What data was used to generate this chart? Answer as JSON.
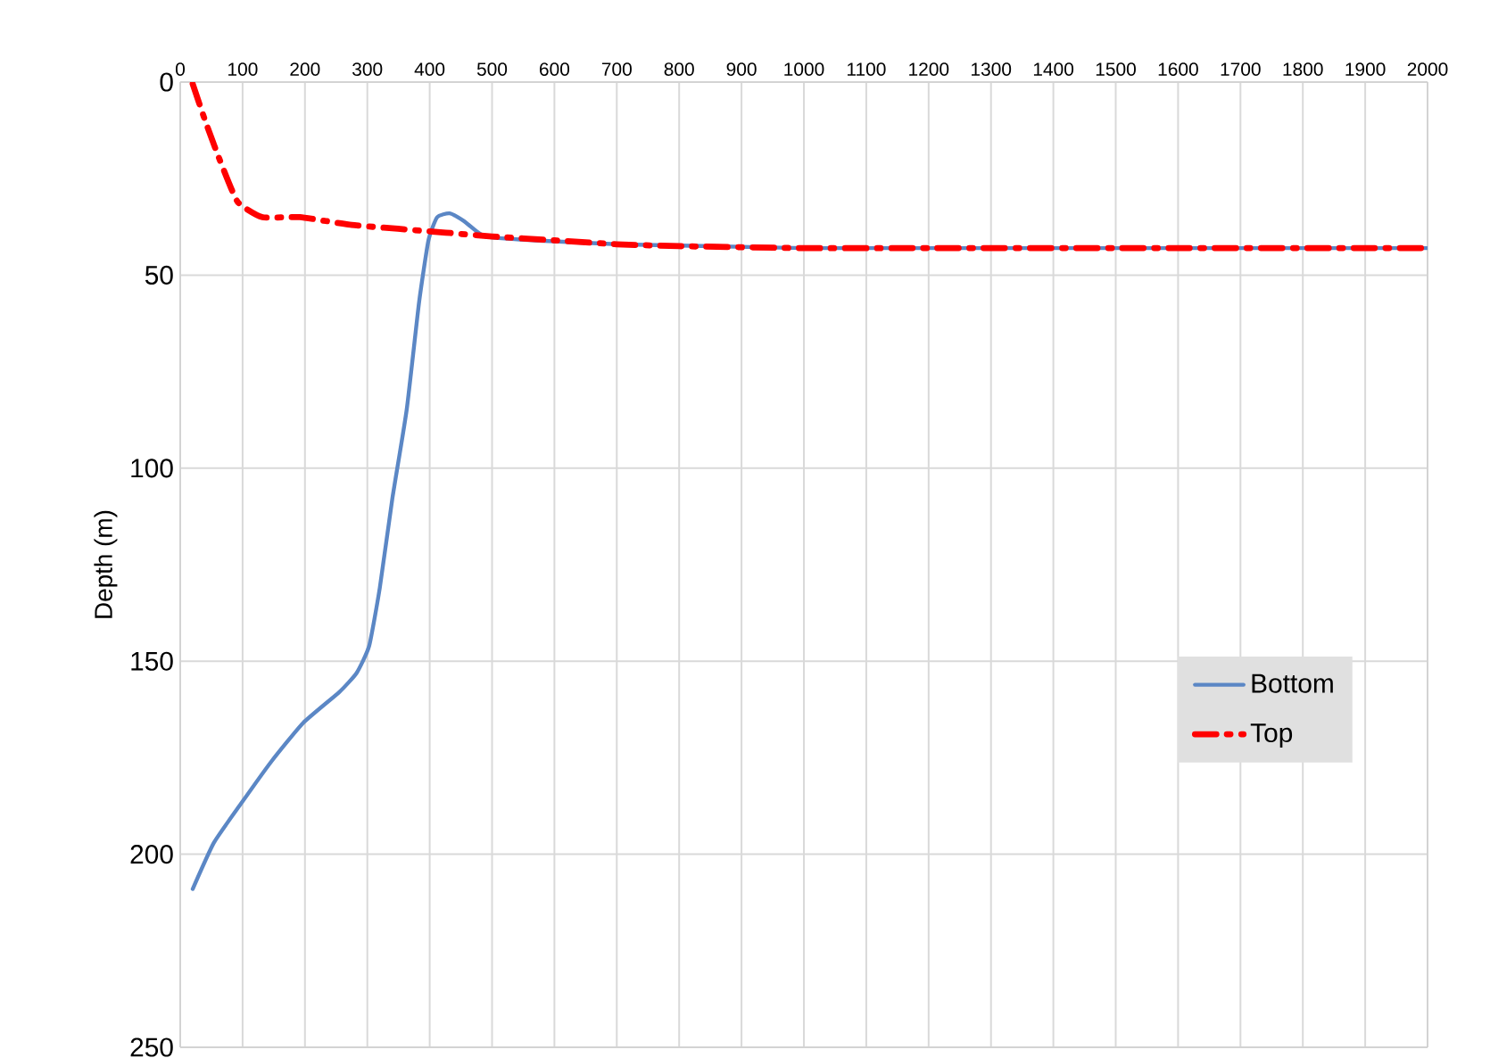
{
  "chart_data": {
    "type": "line",
    "ylabel": "Depth (m)",
    "xlim": [
      0,
      2000
    ],
    "ylim": [
      250,
      0
    ],
    "xticks": [
      0,
      100,
      200,
      300,
      400,
      500,
      600,
      700,
      800,
      900,
      1000,
      1100,
      1200,
      1300,
      1400,
      1500,
      1600,
      1700,
      1800,
      1900,
      2000
    ],
    "yticks": [
      0,
      50,
      100,
      150,
      200,
      250
    ],
    "grid": true,
    "legend": "right",
    "marker": "none",
    "series": [
      {
        "name": "Bottom",
        "color": "#5b87c5",
        "line_style": "solid",
        "x": [
          20,
          54,
          97,
          146,
          197,
          255,
          283,
          303,
          320,
          340,
          363,
          383,
          398,
          412,
          432,
          455,
          489,
          569,
          700,
          855,
          1000,
          1200,
          1500,
          2000
        ],
        "values": [
          209,
          197,
          187,
          176,
          166,
          158,
          153,
          146,
          131,
          108,
          85,
          57,
          41,
          35,
          34,
          36,
          40,
          41,
          42,
          42.5,
          43,
          43,
          43,
          43
        ]
      },
      {
        "name": "Top",
        "color": "#ff0000",
        "line_style": "dashdot",
        "x": [
          20,
          40,
          63,
          92,
          132,
          192,
          275,
          349,
          426,
          500,
          600,
          700,
          800,
          1000,
          1200,
          1500,
          2000
        ],
        "values": [
          0.5,
          10,
          20,
          31,
          35,
          35,
          37,
          38,
          39,
          40,
          41,
          42,
          42.5,
          43,
          43,
          43,
          43
        ]
      }
    ]
  }
}
